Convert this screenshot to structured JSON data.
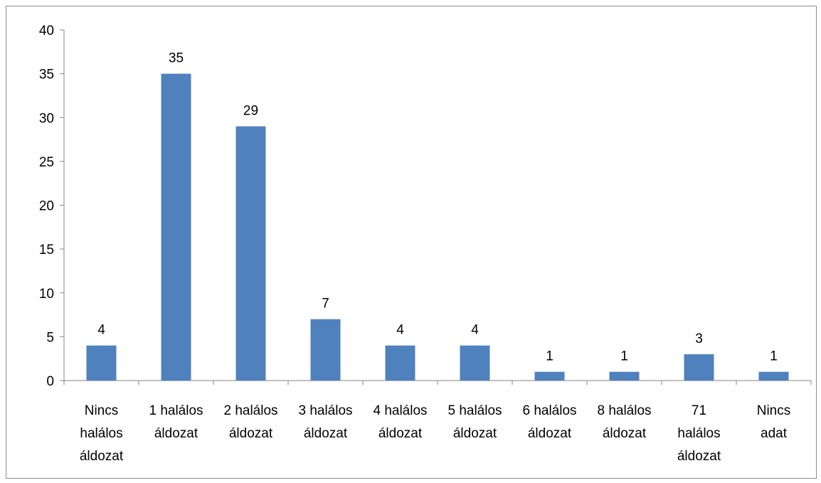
{
  "chart_data": {
    "type": "bar",
    "title": "",
    "xlabel": "",
    "ylabel": "",
    "ylim": [
      0,
      40
    ],
    "y_ticks": [
      0,
      5,
      10,
      15,
      20,
      25,
      30,
      35,
      40
    ],
    "grid": false,
    "legend": "none",
    "bar_color": "#4f81bd",
    "categories": [
      [
        "Nincs",
        "halálos",
        "áldozat"
      ],
      [
        "1 halálos",
        "áldozat"
      ],
      [
        "2 halálos",
        "áldozat"
      ],
      [
        "3 halálos",
        "áldozat"
      ],
      [
        "4 halálos",
        "áldozat"
      ],
      [
        "5 halálos",
        "áldozat"
      ],
      [
        "6 halálos",
        "áldozat"
      ],
      [
        "8 halálos",
        "áldozat"
      ],
      [
        "71",
        "halálos",
        "áldozat"
      ],
      [
        "Nincs",
        "adat"
      ]
    ],
    "values": [
      4,
      35,
      29,
      7,
      4,
      4,
      1,
      1,
      3,
      1
    ]
  }
}
